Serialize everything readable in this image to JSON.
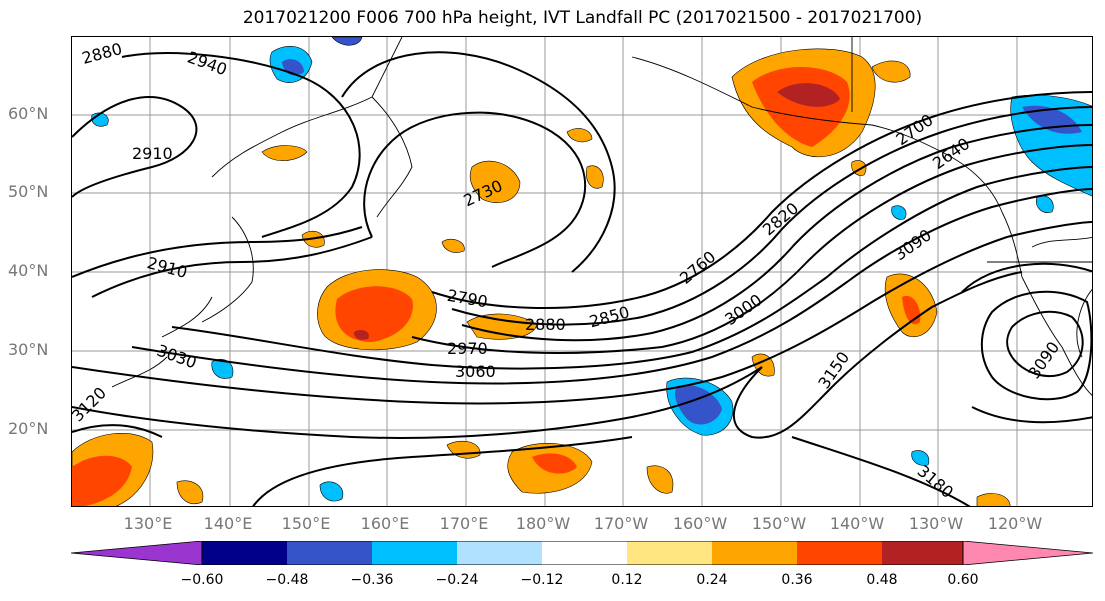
{
  "title": "2017021200 F006 700 hPa height, IVT Landfall PC (2017021500 - 2017021700)",
  "colors": {
    "c1": "#9a35d0",
    "c2": "#00008b",
    "c3": "#3654c9",
    "c4": "#00bfff",
    "c5": "#b0e2ff",
    "c6": "#ffffff",
    "c7": "#ffe680",
    "c8": "#ffa500",
    "c9": "#ff4500",
    "c10": "#b22222",
    "c11": "#ff88b0"
  },
  "lat_labels": [
    "60°N",
    "50°N",
    "40°N",
    "30°N",
    "20°N"
  ],
  "lon_labels": [
    "130°E",
    "140°E",
    "150°E",
    "160°E",
    "170°E",
    "180°W",
    "170°W",
    "160°W",
    "150°W",
    "140°W",
    "130°W",
    "120°W"
  ],
  "colorbar": {
    "ticks": [
      "−0.60",
      "−0.48",
      "−0.36",
      "−0.24",
      "−0.12",
      "0.12",
      "0.24",
      "0.36",
      "0.48",
      "0.60"
    ]
  },
  "contour_labels": {
    "l2880a": "2880",
    "l2940": "2940",
    "l2910a": "2910",
    "l2730": "2730",
    "l2910b": "2910",
    "l2790": "2790",
    "l2880b": "2880",
    "l2850": "2850",
    "l2760": "2760",
    "l2820": "2820",
    "l2970": "2970",
    "l3060": "3060",
    "l3030": "3030",
    "l3000": "3000",
    "l3150": "3150",
    "l3090a": "3090",
    "l3090b": "3090",
    "l3180": "3180",
    "l3120": "3120",
    "l2700": "2700",
    "l2640": "2640"
  }
}
